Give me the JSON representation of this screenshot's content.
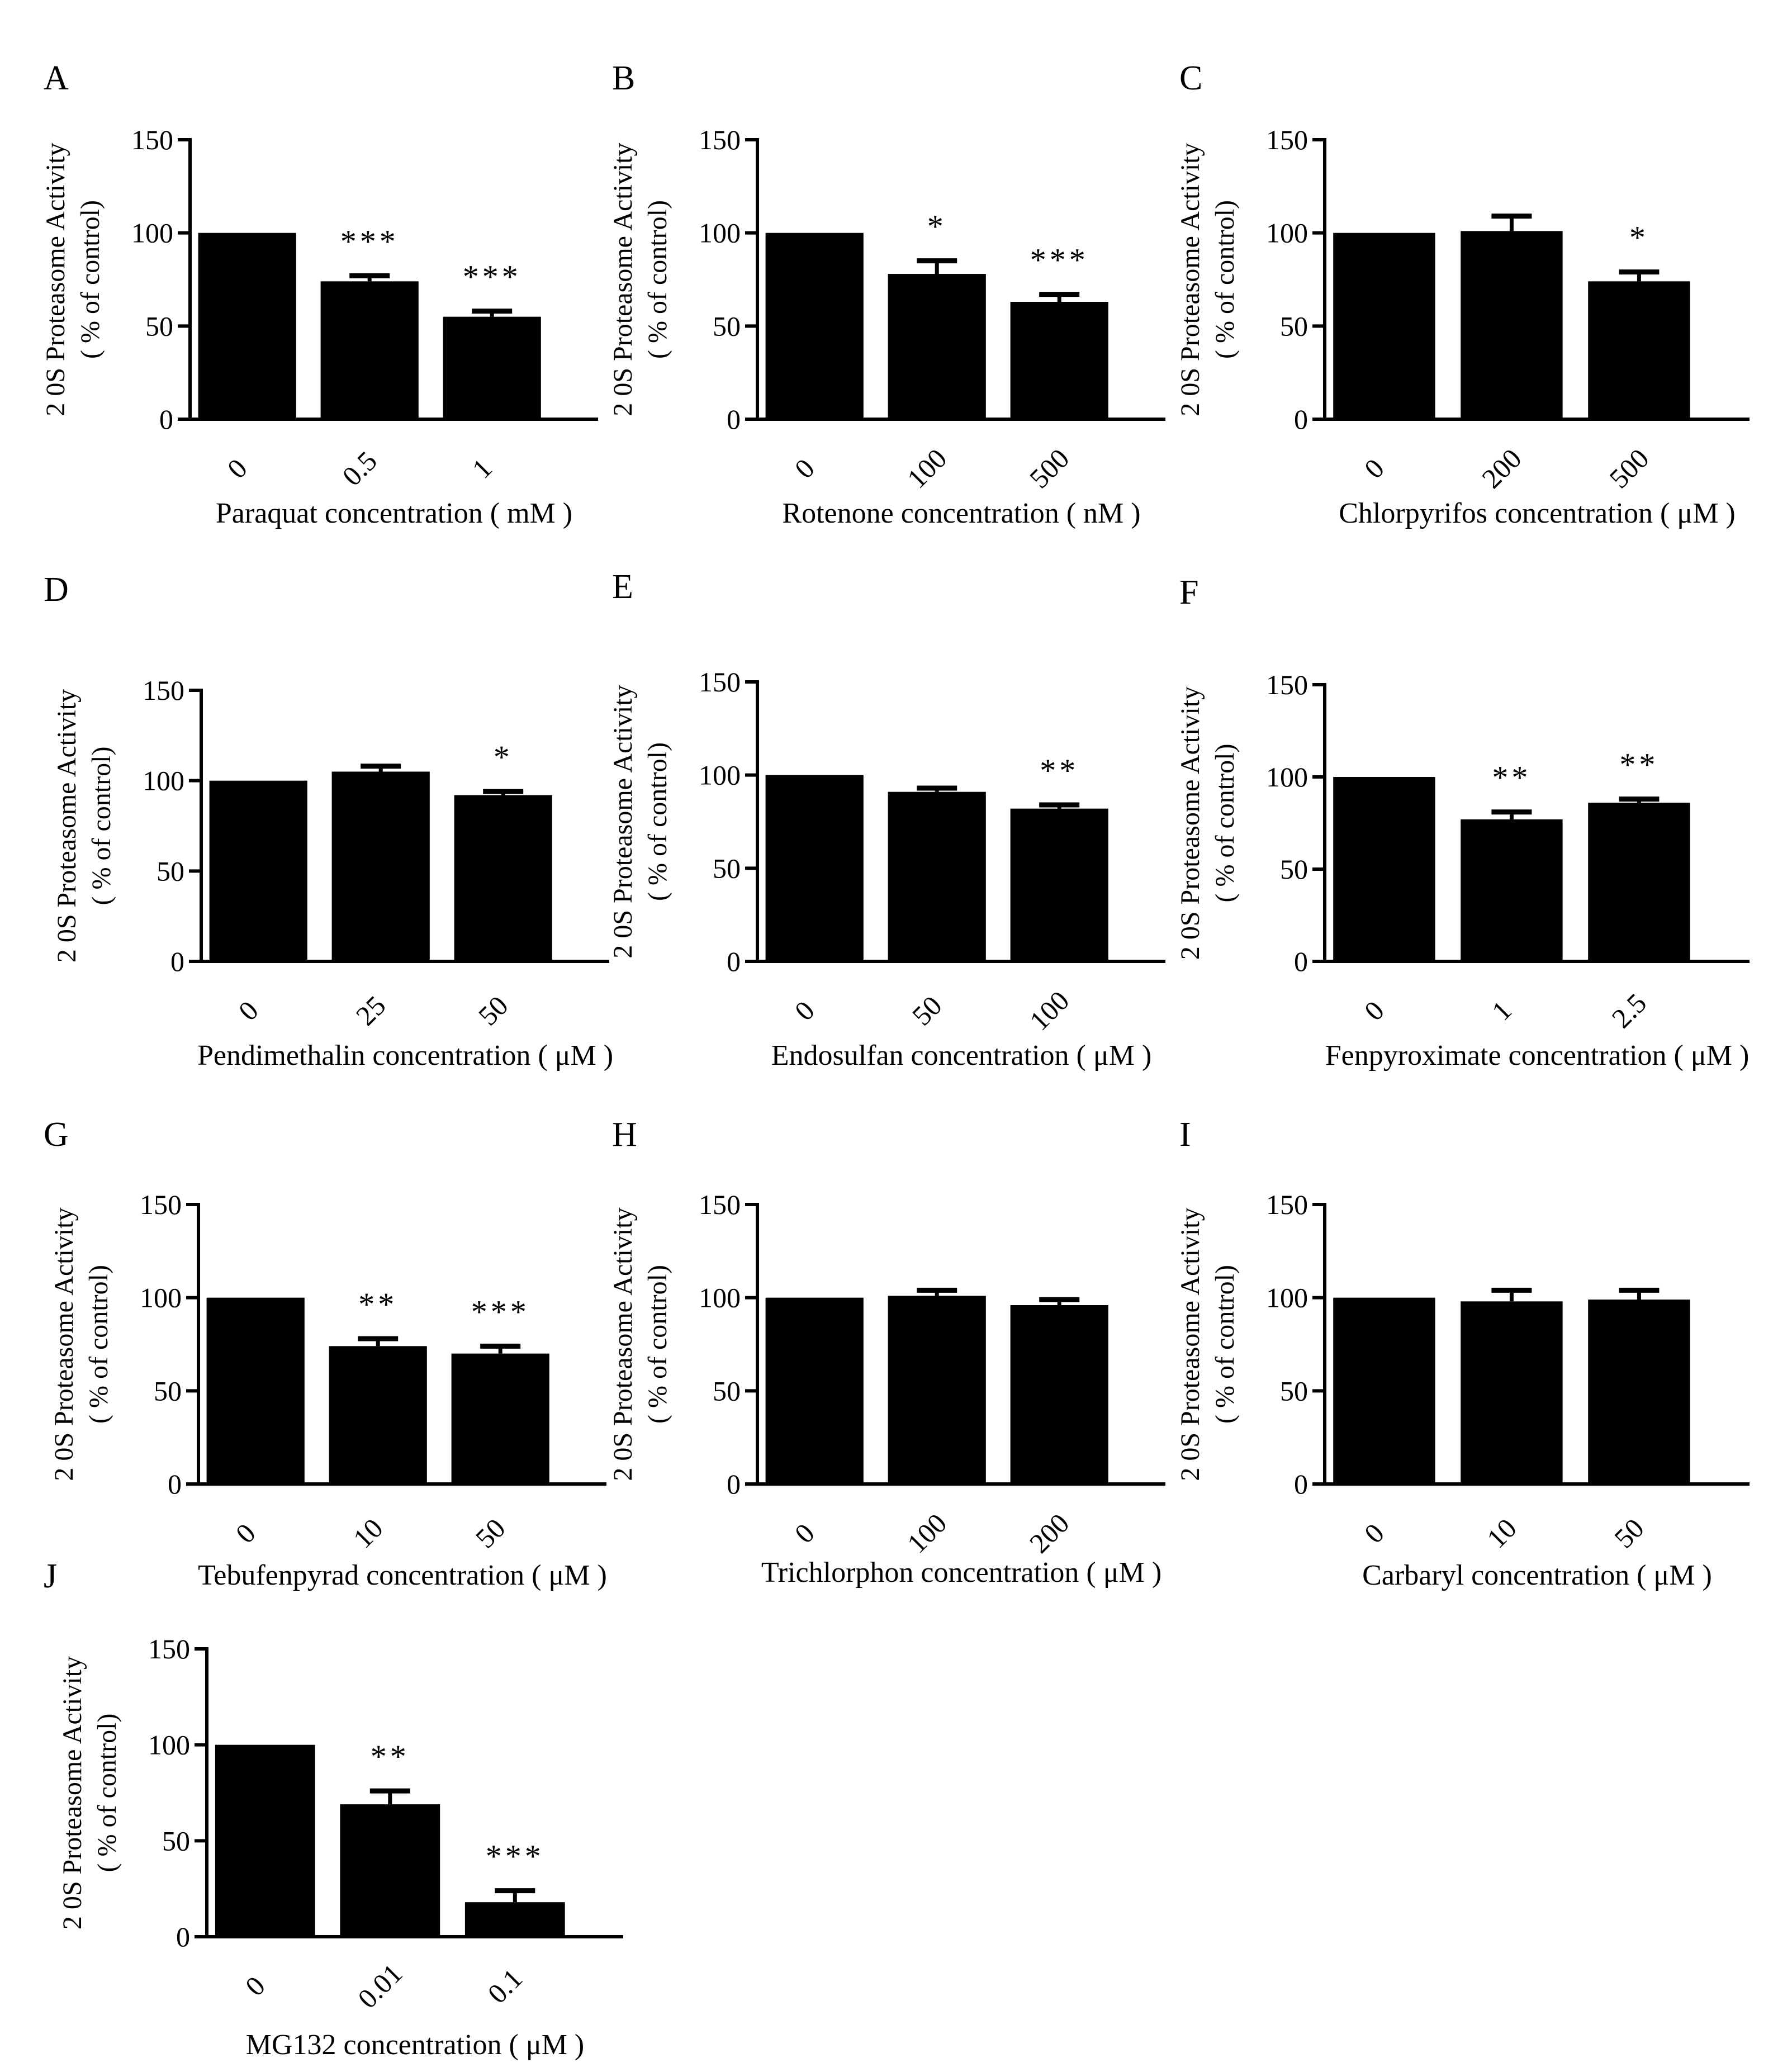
{
  "figure": {
    "ylabel_line1": "2 0S  Proteasome Activity",
    "ylabel_line2": "( % of control)",
    "colors": {
      "bar": "#000000",
      "axis": "#000000",
      "background": "#ffffff"
    }
  },
  "chart_data": [
    {
      "panel": "A",
      "type": "bar",
      "xlabel": "Paraquat  concentration ( mM )",
      "ylabel": "2 0S  Proteasome Activity ( % of control)",
      "ylim": [
        0,
        150
      ],
      "yticks": [
        0,
        50,
        100,
        150
      ],
      "categories": [
        "0",
        "0.5",
        "1"
      ],
      "values": [
        100,
        74,
        55
      ],
      "errors": [
        0,
        3,
        3
      ],
      "significance": [
        "",
        "***",
        "***"
      ]
    },
    {
      "panel": "B",
      "type": "bar",
      "xlabel": "Rotenone  concentration ( nM )",
      "ylabel": "2 0S  Proteasome Activity ( % of control)",
      "ylim": [
        0,
        150
      ],
      "yticks": [
        0,
        50,
        100,
        150
      ],
      "categories": [
        "0",
        "100",
        "500"
      ],
      "values": [
        100,
        78,
        63
      ],
      "errors": [
        0,
        7,
        4
      ],
      "significance": [
        "",
        "*",
        "***"
      ]
    },
    {
      "panel": "C",
      "type": "bar",
      "xlabel": "Chlorpyrifos concentration ( μM )",
      "ylabel": "2 0S  Proteasome Activity ( % of control)",
      "ylim": [
        0,
        150
      ],
      "yticks": [
        0,
        50,
        100,
        150
      ],
      "categories": [
        "0",
        "200",
        "500"
      ],
      "values": [
        100,
        101,
        74
      ],
      "errors": [
        0,
        8,
        5
      ],
      "significance": [
        "",
        "",
        "*"
      ]
    },
    {
      "panel": "D",
      "type": "bar",
      "xlabel": "Pendimethalin concentration ( μM )",
      "ylabel": "2 0S  Proteasome Activity ( % of control)",
      "ylim": [
        0,
        150
      ],
      "yticks": [
        0,
        50,
        100,
        150
      ],
      "categories": [
        "0",
        "25",
        "50"
      ],
      "values": [
        100,
        105,
        92
      ],
      "errors": [
        0,
        3,
        2
      ],
      "significance": [
        "",
        "",
        "*"
      ]
    },
    {
      "panel": "E",
      "type": "bar",
      "xlabel": "Endosulfan concentration ( μM )",
      "ylabel": "2 0S  Proteasome Activity ( % of control)",
      "ylim": [
        0,
        150
      ],
      "yticks": [
        0,
        50,
        100,
        150
      ],
      "categories": [
        "0",
        "50",
        "100"
      ],
      "values": [
        100,
        91,
        82
      ],
      "errors": [
        0,
        2,
        2
      ],
      "significance": [
        "",
        "",
        "**"
      ]
    },
    {
      "panel": "F",
      "type": "bar",
      "xlabel": "Fenpyroximate concentration ( μM )",
      "ylabel": "2 0S  Proteasome Activity ( % of control)",
      "ylim": [
        0,
        150
      ],
      "yticks": [
        0,
        50,
        100,
        150
      ],
      "categories": [
        "0",
        "1",
        "2.5"
      ],
      "values": [
        100,
        77,
        86
      ],
      "errors": [
        0,
        4,
        2
      ],
      "significance": [
        "",
        "**",
        "**"
      ]
    },
    {
      "panel": "G",
      "type": "bar",
      "xlabel": "Tebufenpyrad concentration ( μM )",
      "ylabel": "2 0S  Proteasome Activity ( % of control)",
      "ylim": [
        0,
        150
      ],
      "yticks": [
        0,
        50,
        100,
        150
      ],
      "categories": [
        "0",
        "10",
        "50"
      ],
      "values": [
        100,
        74,
        70
      ],
      "errors": [
        0,
        4,
        4
      ],
      "significance": [
        "",
        "**",
        "***"
      ]
    },
    {
      "panel": "H",
      "type": "bar",
      "xlabel": "Trichlorphon concentration ( μM )",
      "ylabel": "2 0S  Proteasome Activity ( % of control)",
      "ylim": [
        0,
        150
      ],
      "yticks": [
        0,
        50,
        100,
        150
      ],
      "categories": [
        "0",
        "100",
        "200"
      ],
      "values": [
        100,
        101,
        96
      ],
      "errors": [
        0,
        3,
        3
      ],
      "significance": [
        "",
        "",
        ""
      ]
    },
    {
      "panel": "I",
      "type": "bar",
      "xlabel": "Carbaryl  concentration ( μM )",
      "ylabel": "2 0S  Proteasome Activity ( % of control)",
      "ylim": [
        0,
        150
      ],
      "yticks": [
        0,
        50,
        100,
        150
      ],
      "categories": [
        "0",
        "10",
        "50"
      ],
      "values": [
        100,
        98,
        99
      ],
      "errors": [
        0,
        6,
        5
      ],
      "significance": [
        "",
        "",
        ""
      ]
    },
    {
      "panel": "J",
      "type": "bar",
      "xlabel": "MG132 concentration ( μM )",
      "ylabel": "2 0S  Proteasome Activity ( % of control)",
      "ylim": [
        0,
        150
      ],
      "yticks": [
        0,
        50,
        100,
        150
      ],
      "categories": [
        "0",
        "0.01",
        "0.1"
      ],
      "values": [
        100,
        69,
        18
      ],
      "errors": [
        0,
        7,
        6
      ],
      "significance": [
        "",
        "**",
        "***"
      ]
    }
  ]
}
